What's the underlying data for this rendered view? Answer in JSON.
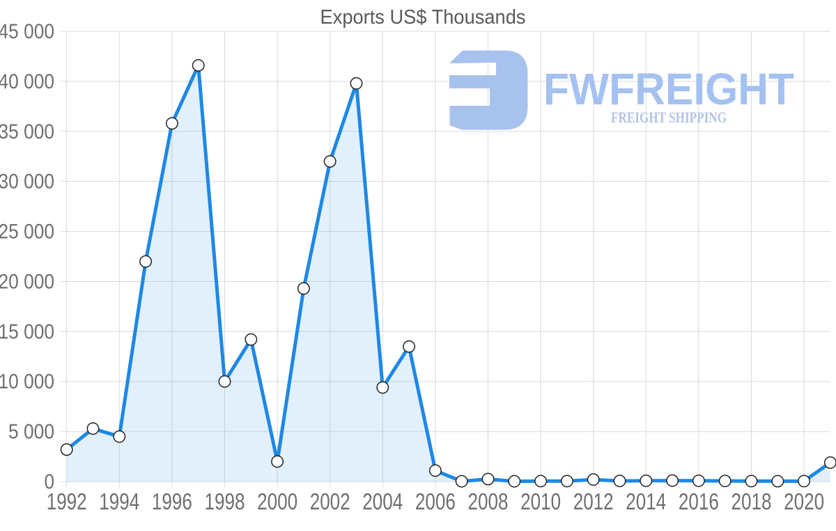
{
  "watermark": {
    "brand": "FWFREIGHT",
    "subtitle": "FREIGHT SHIPPING",
    "mark_color": "#a8c2ee",
    "brand_color": "#a4c1f0",
    "subtitle_color": "#b4c3e6"
  },
  "chart_data": {
    "type": "area",
    "title": "Exports US$ Thousands",
    "series_name": "Exports US$ Thousands",
    "x": [
      1992,
      1993,
      1994,
      1995,
      1996,
      1997,
      1998,
      1999,
      2000,
      2001,
      2002,
      2003,
      2004,
      2005,
      2006,
      2007,
      2008,
      2009,
      2010,
      2011,
      2012,
      2013,
      2014,
      2015,
      2016,
      2017,
      2018,
      2019,
      2020,
      2021
    ],
    "values": [
      3200,
      5300,
      4500,
      22000,
      35800,
      41600,
      10000,
      14200,
      2000,
      19300,
      32000,
      39800,
      9400,
      13500,
      1100,
      30,
      250,
      30,
      50,
      50,
      200,
      60,
      80,
      100,
      80,
      60,
      50,
      40,
      50,
      1900
    ],
    "xlabel": "",
    "ylabel": "",
    "ylim": [
      0,
      45000
    ],
    "ytick_step": 5000,
    "y_ticks": [
      "0",
      "5 000",
      "10 000",
      "15 000",
      "20 000",
      "25 000",
      "30 000",
      "35 000",
      "40 000",
      "45 000"
    ],
    "x_ticks": [
      1992,
      1994,
      1996,
      1998,
      2000,
      2002,
      2004,
      2006,
      2008,
      2010,
      2012,
      2014,
      2016,
      2018,
      2020
    ],
    "grid": true,
    "legend": false,
    "line_color": "#1e88e5",
    "area_opacity": 0.13,
    "marker": {
      "fill": "#ffffff",
      "stroke": "#222222",
      "radius": 8.2
    },
    "gridline_color": "#dadada",
    "label_color": "#6f6f6f",
    "title_color": "#5a5a5a"
  }
}
